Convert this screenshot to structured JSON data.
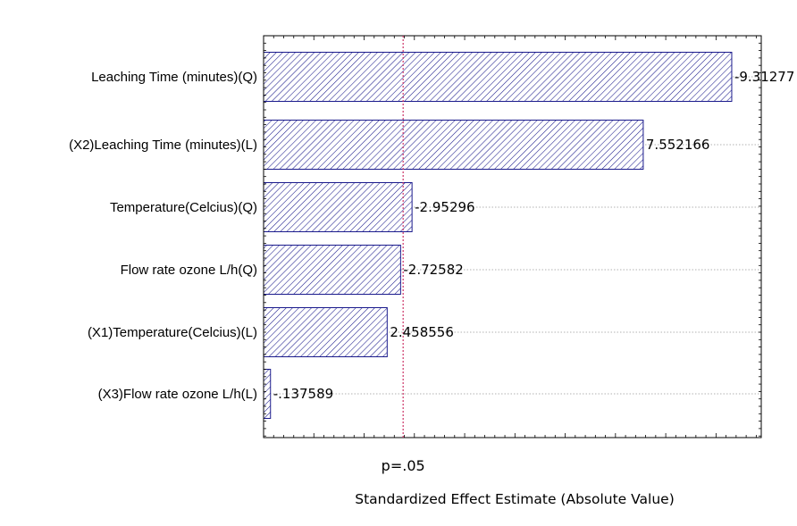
{
  "chart_data": {
    "type": "bar",
    "orientation": "horizontal",
    "title": "",
    "xlabel": "Standardized Effect Estimate (Absolute Value)",
    "ylabel": "",
    "xlim": [
      0,
      9.9
    ],
    "categories": [
      "Leaching Time (minutes)(Q)",
      "(X2)Leaching Time (minutes)(L)",
      "Temperature(Celcius)(Q)",
      "Flow rate ozone L/h(Q)",
      "(X1)Temperature(Celcius)(L)",
      "(X3)Flow rate ozone L/h(L)"
    ],
    "values": [
      9.31277,
      7.552166,
      2.95296,
      2.72582,
      2.458556,
      0.137589
    ],
    "value_labels": [
      "-9.31277",
      "7.552166",
      "-2.95296",
      "-2.72582",
      "2.458556",
      "-.137589"
    ],
    "reference_line": {
      "value": 2.776,
      "label": "p=.05",
      "color": "#cc3366"
    },
    "bar_fill_pattern": "diagonal-hatch",
    "bar_color": "#1a1a8c",
    "grid": true
  }
}
